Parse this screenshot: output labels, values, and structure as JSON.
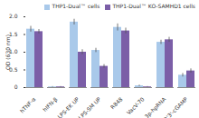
{
  "chart_data": {
    "type": "bar",
    "y_label": "OD (630 nm)",
    "categories": [
      "hTNF-α",
      "hIFN-β",
      "LPS-EK UP",
      "LPS-SM UP",
      "R848",
      "VacV-70",
      "3p-hpRNA",
      "2'3'-cGAMP"
    ],
    "series": [
      {
        "name": "THP1-Dual™ cells",
        "color": "#a9c9ea",
        "values": [
          1.65,
          0.02,
          1.85,
          1.05,
          1.7,
          0.05,
          1.28,
          0.35
        ],
        "errors": [
          0.08,
          0.01,
          0.08,
          0.06,
          0.1,
          0.02,
          0.06,
          0.05
        ]
      },
      {
        "name": "THP1-Dual™ KO-SAMHD1 cells",
        "color": "#7b5ea7",
        "values": [
          1.58,
          0.02,
          1.0,
          0.6,
          1.6,
          0.02,
          1.35,
          0.47
        ],
        "errors": [
          0.06,
          0.01,
          0.07,
          0.05,
          0.08,
          0.01,
          0.07,
          0.06
        ]
      }
    ],
    "ylim": [
      0,
      2
    ],
    "yticks": [
      0,
      0.5,
      {
        "value": 1,
        "label": "1.0"
      },
      1.5,
      {
        "value": 2,
        "label": "2.0"
      }
    ],
    "legend": "top"
  }
}
